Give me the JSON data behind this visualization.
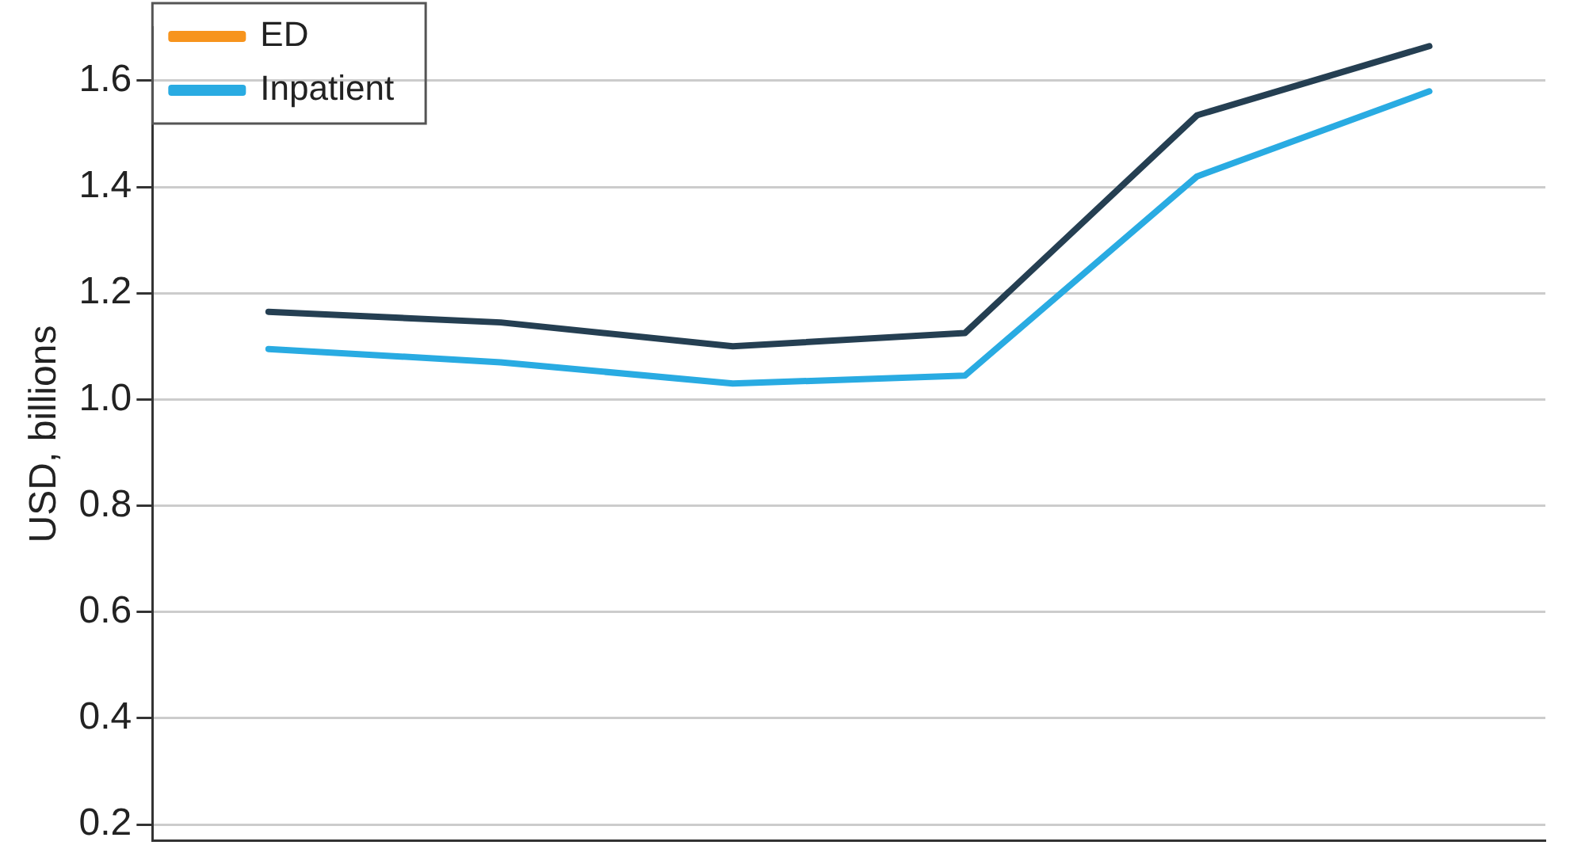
{
  "chart_data": {
    "type": "line",
    "ylabel": "USD, billions",
    "categories": [
      null,
      null,
      null,
      null,
      null,
      null
    ],
    "series": [
      {
        "color": "#253f52",
        "values": [
          1.165,
          1.145,
          1.1,
          1.125,
          1.535,
          1.665
        ]
      },
      {
        "name": "ED",
        "color": "#f7941d",
        "values": [
          null,
          null,
          null,
          null,
          null,
          null
        ]
      },
      {
        "name": "Inpatient",
        "color": "#29abe2",
        "values": [
          1.095,
          1.07,
          1.03,
          1.045,
          1.42,
          1.58
        ]
      }
    ],
    "ylim": [
      0.17,
      1.7
    ],
    "yticks": [
      0.2,
      0.4,
      0.6,
      0.8,
      {
        "value": 1,
        "label": "1.0"
      },
      1.2,
      1.4,
      1.6
    ],
    "grid": "y",
    "legend": "top left",
    "marker": "none",
    "line_style": "solid",
    "tick_labels": "y"
  }
}
